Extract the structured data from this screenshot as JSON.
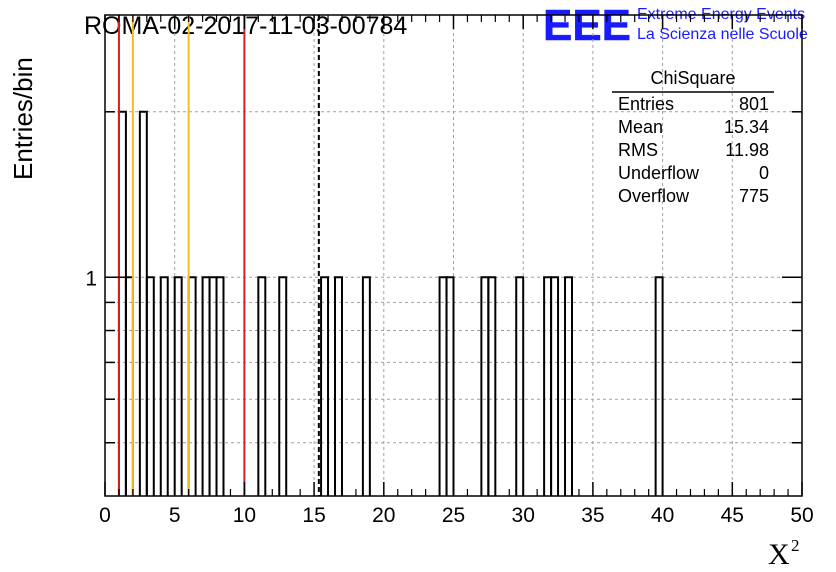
{
  "chart_data": {
    "type": "bar",
    "title": "ROMA-02-2017-11-03-00784",
    "xlabel": "X",
    "xlabel_superscript": "2",
    "ylabel": "Entries/bin",
    "xlim": [
      0,
      50
    ],
    "ylim": [
      0.4,
      3
    ],
    "y_scale": "log",
    "grid": true,
    "x_ticks": [
      0,
      5,
      10,
      15,
      20,
      25,
      30,
      35,
      40,
      45,
      50
    ],
    "y_ticks": [
      1
    ],
    "bin_width": 0.5,
    "bins": [
      {
        "x": 1.0,
        "y": 2
      },
      {
        "x": 1.5,
        "y": 1
      },
      {
        "x": 2.5,
        "y": 2
      },
      {
        "x": 3.0,
        "y": 1
      },
      {
        "x": 4.0,
        "y": 1
      },
      {
        "x": 5.0,
        "y": 1
      },
      {
        "x": 6.0,
        "y": 1
      },
      {
        "x": 7.0,
        "y": 1
      },
      {
        "x": 7.5,
        "y": 1
      },
      {
        "x": 8.0,
        "y": 1
      },
      {
        "x": 11.0,
        "y": 1
      },
      {
        "x": 12.5,
        "y": 1
      },
      {
        "x": 15.5,
        "y": 1
      },
      {
        "x": 16.5,
        "y": 1
      },
      {
        "x": 18.5,
        "y": 1
      },
      {
        "x": 24.0,
        "y": 1
      },
      {
        "x": 24.5,
        "y": 1
      },
      {
        "x": 27.0,
        "y": 1
      },
      {
        "x": 27.5,
        "y": 1
      },
      {
        "x": 29.5,
        "y": 1
      },
      {
        "x": 31.5,
        "y": 1
      },
      {
        "x": 32.0,
        "y": 1
      },
      {
        "x": 33.0,
        "y": 1
      },
      {
        "x": 39.5,
        "y": 1
      }
    ],
    "vertical_lines": [
      {
        "x": 1.0,
        "color": "#d42020",
        "style": "solid"
      },
      {
        "x": 2.0,
        "color": "#f0c020",
        "style": "solid"
      },
      {
        "x": 6.0,
        "color": "#f0c020",
        "style": "solid"
      },
      {
        "x": 10.0,
        "color": "#d42020",
        "style": "solid"
      },
      {
        "x": 15.34,
        "color": "#000000",
        "style": "dashed"
      }
    ],
    "stats_box": {
      "title": "ChiSquare",
      "rows": [
        {
          "label": "Entries",
          "value": "801"
        },
        {
          "label": "Mean",
          "value": "15.34"
        },
        {
          "label": "RMS",
          "value": "11.98"
        },
        {
          "label": "Underflow",
          "value": "0"
        },
        {
          "label": "Overflow",
          "value": "775"
        }
      ]
    }
  },
  "logo": {
    "mark": "EEE",
    "line1": "Extreme Energy Events",
    "line2": "La Scienza nelle Scuole",
    "color": "#1a1aff"
  }
}
